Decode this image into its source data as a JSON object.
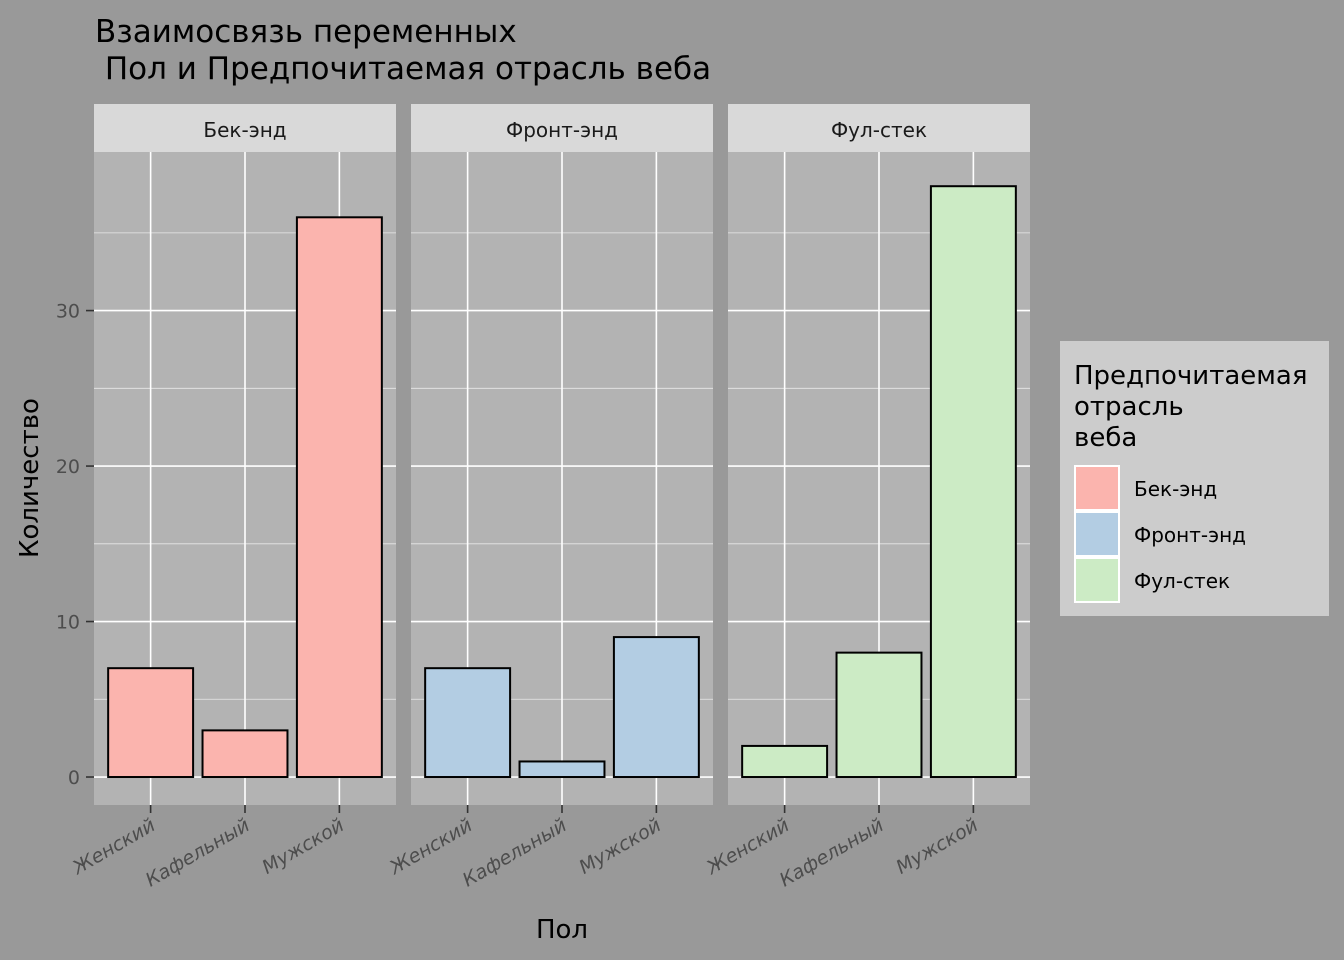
{
  "chart_data": {
    "type": "bar",
    "title_lines": [
      "Взаимосвязь переменных",
      " Пол и Предпочитаемая отрасль веба"
    ],
    "xlabel": "Пол",
    "ylabel": "Количество",
    "categories": [
      "Женский",
      "Кафельный",
      "Мужской"
    ],
    "y_ticks": [
      0,
      10,
      20,
      30
    ],
    "ylim": [
      -1.8,
      40.2
    ],
    "grid": true,
    "facets": [
      {
        "name": "Бек-энд",
        "values": [
          7,
          3,
          36
        ],
        "color": "#FBB4AE"
      },
      {
        "name": "Фронт-энд",
        "values": [
          7,
          1,
          9
        ],
        "color": "#B3CDE3"
      },
      {
        "name": "Фул-стек",
        "values": [
          2,
          8,
          38
        ],
        "color": "#CCEBC5"
      }
    ],
    "legend": {
      "title_lines": [
        "Предпочитаемая",
        "отрасль",
        "веба"
      ],
      "entries": [
        "Бек-энд",
        "Фронт-энд",
        "Фул-стек"
      ],
      "position": "right"
    }
  },
  "colors": {
    "plot_background": "#999999",
    "panel_background": "#B3B3B3",
    "strip_background": "#D9D9D9",
    "legend_background": "#CCCCCC",
    "grid": "#FFFFFF",
    "bar_outline": "#000000"
  }
}
